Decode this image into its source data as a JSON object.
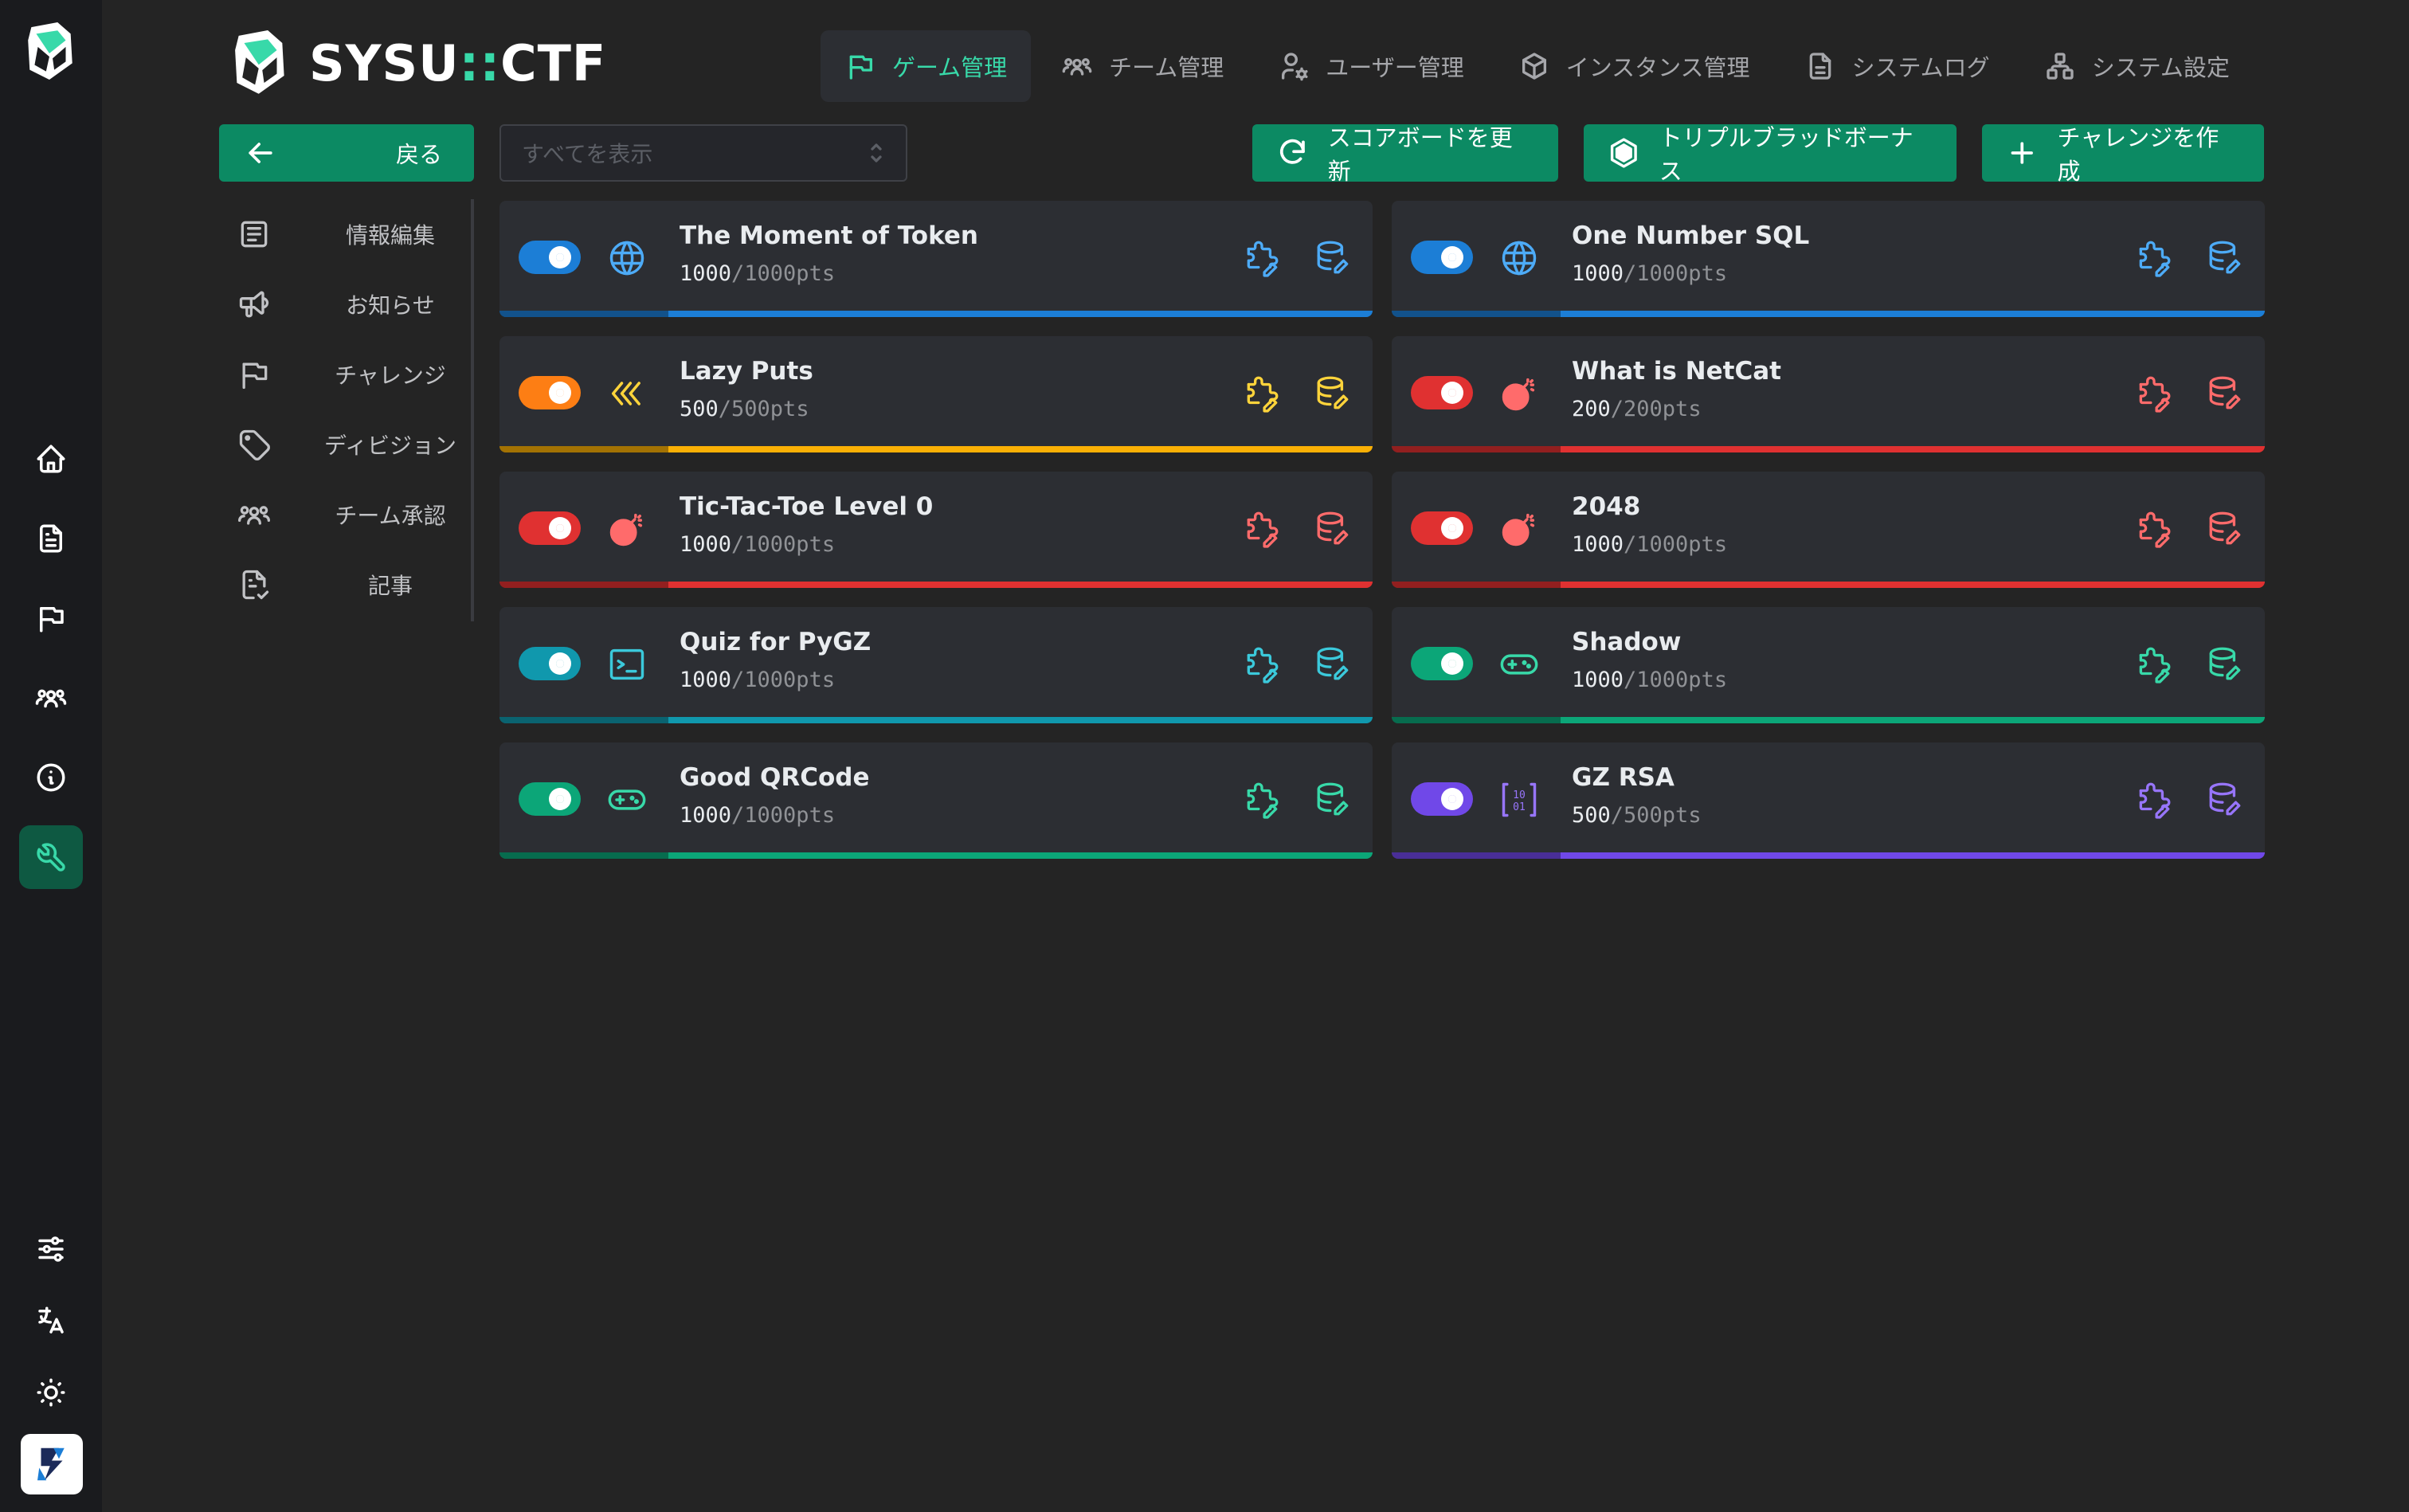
{
  "brand": {
    "name_left": "SYSU",
    "name_sep": "::",
    "name_right": "CTF"
  },
  "topnav": [
    {
      "label": "ゲーム管理",
      "icon": "flag-icon",
      "active": true
    },
    {
      "label": "チーム管理",
      "icon": "users-icon",
      "active": false
    },
    {
      "label": "ユーザー管理",
      "icon": "user-cog-icon",
      "active": false
    },
    {
      "label": "インスタンス管理",
      "icon": "box-icon",
      "active": false
    },
    {
      "label": "システムログ",
      "icon": "file-text-icon",
      "active": false
    },
    {
      "label": "システム設定",
      "icon": "sitemap-icon",
      "active": false
    }
  ],
  "toolbar": {
    "back_label": "戻る",
    "filter_placeholder": "すべてを表示",
    "refresh_label": "スコアボードを更新",
    "bonus_label": "トリプルブラッドボーナス",
    "create_label": "チャレンジを作成"
  },
  "sidemenu": [
    {
      "label": "情報編集",
      "icon": "edit-info-icon"
    },
    {
      "label": "お知らせ",
      "icon": "speakerphone-icon"
    },
    {
      "label": "チャレンジ",
      "icon": "flag-icon"
    },
    {
      "label": "ディビジョン",
      "icon": "tag-icon"
    },
    {
      "label": "チーム承認",
      "icon": "users-icon"
    },
    {
      "label": "記事",
      "icon": "article-check-icon"
    }
  ],
  "colors": {
    "accent": "#38D9A9",
    "button": "#0C8A63",
    "blue": "#1C7ED6",
    "blue_icon": "#4DABF7",
    "yellow": "#FAB005",
    "yellow_icon": "#FFD43B",
    "orange": "#FD7E14",
    "red": "#E03131",
    "red_icon": "#FF6B6B",
    "cyan": "#1098AD",
    "cyan_icon": "#3BC9DB",
    "green": "#0CA678",
    "green_icon": "#38D9A9",
    "violet": "#7048E8",
    "violet_icon": "#9775FA"
  },
  "challenges": [
    {
      "title": "The Moment of Token",
      "score": "1000",
      "max": "/1000pts",
      "category_icon": "globe-icon",
      "toggle_color": "#1C7ED6",
      "bar_color": "#1C7ED6",
      "icon_color": "#4DABF7",
      "enabled": true
    },
    {
      "title": "One Number SQL",
      "score": "1000",
      "max": "/1000pts",
      "category_icon": "globe-icon",
      "toggle_color": "#1C7ED6",
      "bar_color": "#1C7ED6",
      "icon_color": "#4DABF7",
      "enabled": true
    },
    {
      "title": "Lazy Puts",
      "score": "500",
      "max": "/500pts",
      "category_icon": "chevrons-left-icon",
      "toggle_color": "#FD7E14",
      "bar_color": "#FAB005",
      "icon_color": "#FFD43B",
      "enabled": true
    },
    {
      "title": "What is NetCat",
      "score": "200",
      "max": "/200pts",
      "category_icon": "bomb-icon",
      "toggle_color": "#E03131",
      "bar_color": "#E03131",
      "icon_color": "#FF6B6B",
      "enabled": true
    },
    {
      "title": "Tic-Tac-Toe Level 0",
      "score": "1000",
      "max": "/1000pts",
      "category_icon": "bomb-icon",
      "toggle_color": "#E03131",
      "bar_color": "#E03131",
      "icon_color": "#FF6B6B",
      "enabled": true
    },
    {
      "title": "2048",
      "score": "1000",
      "max": "/1000pts",
      "category_icon": "bomb-icon",
      "toggle_color": "#E03131",
      "bar_color": "#E03131",
      "icon_color": "#FF6B6B",
      "enabled": true
    },
    {
      "title": "Quiz for PyGZ",
      "score": "1000",
      "max": "/1000pts",
      "category_icon": "terminal-icon",
      "toggle_color": "#1098AD",
      "bar_color": "#1098AD",
      "icon_color": "#3BC9DB",
      "enabled": true
    },
    {
      "title": "Shadow",
      "score": "1000",
      "max": "/1000pts",
      "category_icon": "gamepad-icon",
      "toggle_color": "#0CA678",
      "bar_color": "#0CA678",
      "icon_color": "#38D9A9",
      "enabled": true
    },
    {
      "title": "Good QRCode",
      "score": "1000",
      "max": "/1000pts",
      "category_icon": "gamepad-icon",
      "toggle_color": "#0CA678",
      "bar_color": "#0CA678",
      "icon_color": "#38D9A9",
      "enabled": true
    },
    {
      "title": "GZ RSA",
      "score": "500",
      "max": "/500pts",
      "category_icon": "binary-icon",
      "toggle_color": "#7048E8",
      "bar_color": "#7048E8",
      "icon_color": "#9775FA",
      "enabled": true
    }
  ],
  "rail": [
    {
      "icon": "home-icon"
    },
    {
      "icon": "file-text-icon"
    },
    {
      "icon": "flag-icon"
    },
    {
      "icon": "users-icon"
    },
    {
      "icon": "info-circle-icon"
    },
    {
      "icon": "wrench-icon",
      "active": true
    }
  ],
  "rail_bottom": [
    {
      "icon": "adjustments-icon"
    },
    {
      "icon": "language-icon"
    },
    {
      "icon": "sun-icon"
    }
  ]
}
